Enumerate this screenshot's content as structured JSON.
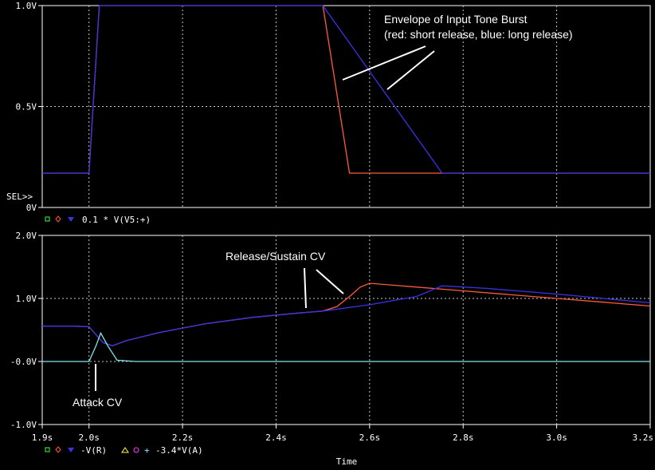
{
  "chart_data": [
    {
      "type": "line",
      "xlim": [
        1.9,
        3.2
      ],
      "ylim": [
        0,
        1.0
      ],
      "yticks": [
        {
          "value": 1.0,
          "label": "1.0V"
        },
        {
          "value": 0.5,
          "label": "0.5V"
        },
        {
          "value": 0.0,
          "label": "0V"
        }
      ],
      "grid": true,
      "selector_label": "SEL>>",
      "legend_label": "0.1 * V(V5:+)",
      "series": [
        {
          "color": "#ff5a3c",
          "points": [
            [
              1.9,
              0.17
            ],
            [
              2.0,
              0.17
            ],
            [
              2.022,
              1.0
            ],
            [
              2.5,
              1.0
            ],
            [
              2.557,
              0.17
            ],
            [
              3.2,
              0.17
            ]
          ]
        },
        {
          "color": "#3c32e6",
          "points": [
            [
              1.9,
              0.17
            ],
            [
              2.0,
              0.17
            ],
            [
              2.022,
              1.0
            ],
            [
              2.5,
              1.0
            ],
            [
              2.755,
              0.17
            ],
            [
              3.2,
              0.17
            ]
          ]
        }
      ],
      "annotations": [
        {
          "lines": [
            "Envelope of Input Tone Burst",
            "(red: short release, blue: long release)"
          ]
        }
      ]
    },
    {
      "type": "line",
      "xlim": [
        1.9,
        3.2
      ],
      "ylim": [
        -1.0,
        2.0
      ],
      "xticks": [
        {
          "value": 1.9,
          "label": "1.9s"
        },
        {
          "value": 2.0,
          "label": "2.0s"
        },
        {
          "value": 2.2,
          "label": "2.2s"
        },
        {
          "value": 2.4,
          "label": "2.4s"
        },
        {
          "value": 2.6,
          "label": "2.6s"
        },
        {
          "value": 2.8,
          "label": "2.8s"
        },
        {
          "value": 3.0,
          "label": "3.0s"
        },
        {
          "value": 3.2,
          "label": "3.2s"
        }
      ],
      "yticks": [
        {
          "value": 2.0,
          "label": "2.0V"
        },
        {
          "value": 1.0,
          "label": "1.0V"
        },
        {
          "value": 0.0,
          "label": "-0.0V"
        },
        {
          "value": -1.0,
          "label": "-1.0V"
        }
      ],
      "xlabel": "Time",
      "grid": true,
      "legend_label": "-V(R)",
      "legend_label_2": "-3.4*V(A)",
      "series": [
        {
          "color": "#ff5a3c",
          "points": [
            [
              1.9,
              0.56
            ],
            [
              1.97,
              0.56
            ],
            [
              2.0,
              0.55
            ],
            [
              2.03,
              0.3
            ],
            [
              2.05,
              0.25
            ],
            [
              2.08,
              0.33
            ],
            [
              2.15,
              0.46
            ],
            [
              2.25,
              0.6
            ],
            [
              2.35,
              0.7
            ],
            [
              2.45,
              0.77
            ],
            [
              2.5,
              0.8
            ],
            [
              2.53,
              0.87
            ],
            [
              2.56,
              1.05
            ],
            [
              2.58,
              1.18
            ],
            [
              2.6,
              1.24
            ],
            [
              2.8,
              1.12
            ],
            [
              3.0,
              1.0
            ],
            [
              3.2,
              0.88
            ]
          ]
        },
        {
          "color": "#3c32e6",
          "points": [
            [
              1.9,
              0.56
            ],
            [
              1.97,
              0.56
            ],
            [
              2.0,
              0.55
            ],
            [
              2.03,
              0.3
            ],
            [
              2.05,
              0.25
            ],
            [
              2.08,
              0.33
            ],
            [
              2.15,
              0.46
            ],
            [
              2.25,
              0.6
            ],
            [
              2.35,
              0.7
            ],
            [
              2.45,
              0.77
            ],
            [
              2.5,
              0.8
            ],
            [
              2.6,
              0.9
            ],
            [
              2.7,
              1.03
            ],
            [
              2.755,
              1.2
            ],
            [
              2.85,
              1.16
            ],
            [
              3.0,
              1.07
            ],
            [
              3.2,
              0.93
            ]
          ]
        },
        {
          "color": "#7fe8f0",
          "points": [
            [
              1.9,
              0.0
            ],
            [
              2.0,
              0.0
            ],
            [
              2.015,
              0.25
            ],
            [
              2.025,
              0.45
            ],
            [
              2.04,
              0.25
            ],
            [
              2.06,
              0.02
            ],
            [
              2.1,
              0.0
            ],
            [
              3.2,
              0.0
            ]
          ]
        }
      ],
      "annotations": [
        {
          "lines": [
            "Release/Sustain CV"
          ]
        },
        {
          "lines": [
            "Attack CV"
          ]
        }
      ]
    }
  ]
}
